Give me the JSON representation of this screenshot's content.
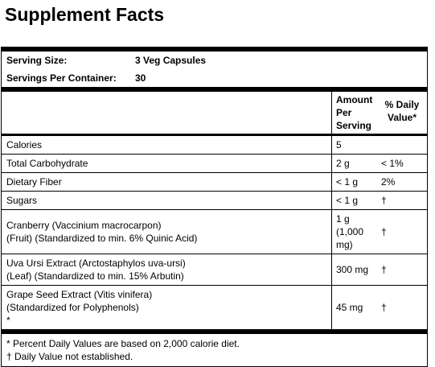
{
  "title": "Supplement Facts",
  "serving": {
    "size_label": "Serving Size:",
    "size": "3 Veg Capsules",
    "per_container_label": "Servings Per Container:",
    "per_container": "30"
  },
  "header": {
    "amount": "Amount Per Serving",
    "dv": "% Daily Value*"
  },
  "rows": [
    {
      "name_lines": [
        "Calories"
      ],
      "amount": "5",
      "dv": null
    },
    {
      "name_lines": [
        "Total Carbohydrate"
      ],
      "amount": "2 g",
      "dv": "< 1%"
    },
    {
      "name_lines": [
        "Dietary Fiber"
      ],
      "amount": "< 1 g",
      "dv": "2%"
    },
    {
      "name_lines": [
        "Sugars"
      ],
      "amount": "< 1 g",
      "dv": "†"
    },
    {
      "name_lines": [
        "Cranberry (Vaccinium macrocarpon)",
        "(Fruit) (Standardized to min. 6% Quinic Acid)"
      ],
      "amount": "1 g (1,000 mg)",
      "dv": "†"
    },
    {
      "name_lines": [
        "Uva Ursi Extract (Arctostaphylos uva-ursi)",
        "(Leaf) (Standardized to min. 15% Arbutin)"
      ],
      "amount": "300 mg",
      "dv": "†"
    },
    {
      "name_lines": [
        "Grape Seed Extract (Vitis vinifera)",
        "(Standardized for Polyphenols)",
        "*"
      ],
      "amount": "45 mg",
      "dv": "†"
    }
  ],
  "footnotes": [
    "* Percent Daily Values are based on 2,000 calorie diet.",
    "† Daily Value not established."
  ]
}
